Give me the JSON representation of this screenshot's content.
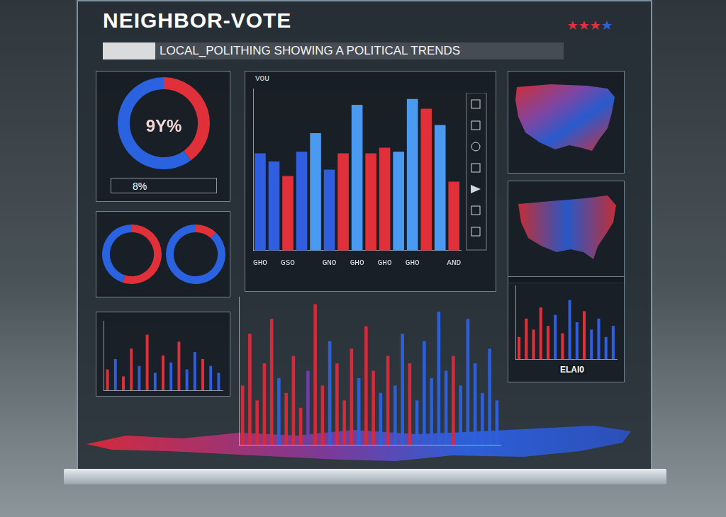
{
  "header": {
    "title": "NEIGHBOR-VOTE",
    "subtitle": "LOCAL_POLITHING SHOWING A POLITICAL TRENDS"
  },
  "chart_data": [
    {
      "type": "doughnut",
      "annotations": [
        "9Y%",
        "8%"
      ],
      "values": [
        40,
        60
      ],
      "colors": [
        "#e0303a",
        "#2a62e0"
      ]
    },
    {
      "type": "doughnut",
      "values": [
        55,
        45
      ],
      "colors": [
        "#e0303a",
        "#2a62e0"
      ]
    },
    {
      "type": "doughnut",
      "values": [
        12,
        88
      ],
      "colors": [
        "#e0303a",
        "#2a62e0"
      ]
    },
    {
      "type": "bar",
      "title": "VOU",
      "categories": [
        "GHO",
        null,
        "GSO",
        null,
        null,
        "GNO",
        null,
        "GHO",
        null,
        "GHO",
        null,
        "GHO",
        null,
        null,
        "AND"
      ],
      "values": [
        120,
        110,
        92,
        122,
        145,
        100,
        120,
        180,
        120,
        127,
        122,
        187,
        175,
        155,
        85
      ],
      "colors": [
        "#2f5fe0",
        "#2f5fe0",
        "#e0303a",
        "#2f5fe0",
        "#4a9af2",
        "#2f5fe0",
        "#e0303a",
        "#4a9af2",
        "#e0303a",
        "#e0303a",
        "#4a9af2",
        "#4a9af2",
        "#e0303a",
        "#4a9af2",
        "#e0303a"
      ],
      "ylim": [
        0,
        200
      ],
      "tick_labels": "x",
      "grid": false
    },
    {
      "type": "bar",
      "values": [
        30,
        45,
        20,
        60,
        35,
        80,
        25,
        50,
        40,
        70,
        30,
        55,
        45,
        35,
        25
      ],
      "colors": [
        "#e0303a",
        "#2f5fe0",
        "#e0303a",
        "#e0303a",
        "#2f5fe0",
        "#e0303a",
        "#2f5fe0",
        "#e0303a",
        "#2f5fe0",
        "#e0303a",
        "#2f5fe0",
        "#2f5fe0",
        "#e0303a",
        "#2f5fe0",
        "#2f5fe0"
      ],
      "ylim": [
        0,
        100
      ],
      "tick_labels": false,
      "grid": false
    },
    {
      "type": "bar",
      "values": [
        40,
        75,
        30,
        55,
        85,
        45,
        35,
        60,
        25,
        50,
        95,
        40,
        70,
        55,
        30,
        65,
        45,
        80,
        50,
        35,
        60,
        40,
        75,
        55,
        30,
        70,
        45,
        90,
        50,
        60,
        40,
        85,
        55,
        35,
        65,
        30
      ],
      "colors": [
        "#d42a3a",
        "#d42a3a",
        "#d42a3a",
        "#d42a3a",
        "#d42a3a",
        "#2c5fd8",
        "#d42a3a",
        "#d42a3a",
        "#d42a3a",
        "#6a3fa8",
        "#d42a3a",
        "#d42a3a",
        "#2c5fd8",
        "#d42a3a",
        "#d42a3a",
        "#d42a3a",
        "#2c5fd8",
        "#d42a3a",
        "#d42a3a",
        "#2c5fd8",
        "#d42a3a",
        "#2c5fd8",
        "#2c5fd8",
        "#d42a3a",
        "#2c5fd8",
        "#2c5fd8",
        "#2c5fd8",
        "#2c5fd8",
        "#2c5fd8",
        "#d42a3a",
        "#2c5fd8",
        "#2c5fd8",
        "#2c5fd8",
        "#2c5fd8",
        "#2c5fd8",
        "#2c5fd8"
      ],
      "ylim": [
        0,
        100
      ],
      "tick_labels": false,
      "grid": false
    },
    {
      "type": "bar",
      "annotations": [
        "ELAI0"
      ],
      "values": [
        30,
        55,
        40,
        70,
        45,
        60,
        35,
        80,
        50,
        65,
        40,
        55,
        30,
        45
      ],
      "colors": [
        "#e0303a",
        "#e0303a",
        "#e0303a",
        "#e0303a",
        "#e0303a",
        "#2f5fe0",
        "#e0303a",
        "#2f5fe0",
        "#2f5fe0",
        "#e0303a",
        "#2f5fe0",
        "#2f5fe0",
        "#2f5fe0",
        "#2f5fe0"
      ],
      "ylim": [
        0,
        100
      ],
      "tick_labels": false,
      "grid": false
    }
  ]
}
